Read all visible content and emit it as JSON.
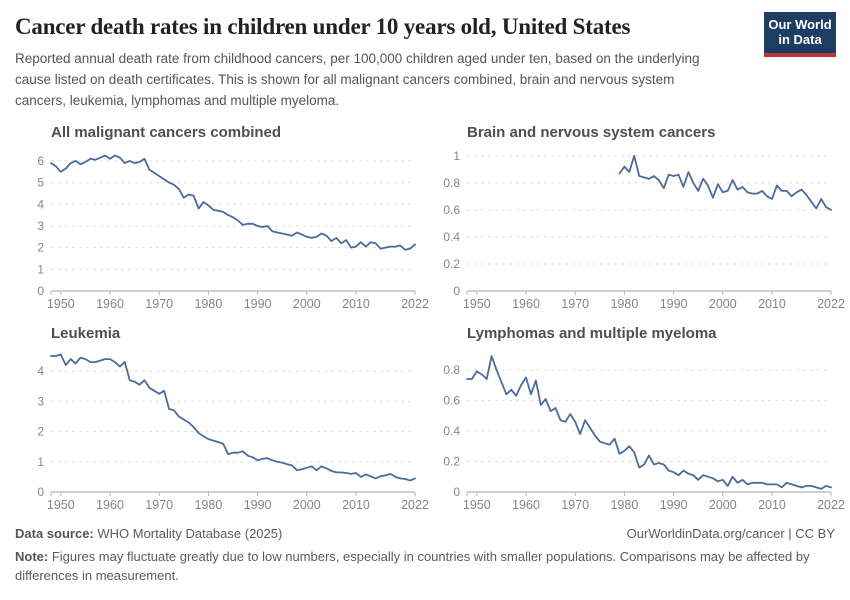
{
  "header": {
    "title": "Cancer death rates in children under 10 years old, United States",
    "subtitle": "Reported annual death rate from childhood cancers, per 100,000 children aged under ten, based on the underlying cause listed on death certificates. This is shown for all malignant cancers combined, brain and nervous system cancers, leukemia, lymphomas and multiple myeloma.",
    "logo": {
      "line1": "Our World",
      "line2": "in Data"
    }
  },
  "colors": {
    "line": "#4c6a9c",
    "grid": "#dddddd",
    "axis": "#b5b5b5",
    "tick_label": "#858585",
    "chart_title": "#4f4f4f",
    "logo_bg": "#1d3d63",
    "logo_accent": "#c0333b"
  },
  "chart_data": [
    {
      "type": "line",
      "title": "All malignant cancers combined",
      "x_axis_range": [
        1948,
        2022
      ],
      "x_start": 1948,
      "x_ticks": [
        1950,
        1960,
        1970,
        1980,
        1990,
        2000,
        2010,
        2022
      ],
      "y_ticks": [
        0,
        1,
        2,
        3,
        4,
        5,
        6
      ],
      "y_render_max": 6.55,
      "values": [
        5.9,
        5.75,
        5.5,
        5.65,
        5.9,
        6.0,
        5.85,
        5.95,
        6.1,
        6.05,
        6.15,
        6.25,
        6.1,
        6.25,
        6.15,
        5.9,
        6.0,
        5.9,
        5.95,
        6.1,
        5.6,
        5.45,
        5.3,
        5.15,
        5.0,
        4.9,
        4.7,
        4.3,
        4.45,
        4.4,
        3.8,
        4.1,
        3.95,
        3.75,
        3.7,
        3.65,
        3.5,
        3.4,
        3.25,
        3.05,
        3.1,
        3.1,
        3.0,
        2.95,
        3.0,
        2.75,
        2.7,
        2.65,
        2.6,
        2.55,
        2.7,
        2.6,
        2.5,
        2.45,
        2.5,
        2.65,
        2.55,
        2.3,
        2.45,
        2.2,
        2.35,
        2.0,
        2.05,
        2.25,
        2.05,
        2.25,
        2.2,
        1.95,
        2.0,
        2.05,
        2.05,
        2.1,
        1.9,
        1.95,
        2.15
      ]
    },
    {
      "type": "line",
      "title": "Brain and nervous system cancers",
      "x_axis_range": [
        1948,
        2022
      ],
      "x_start": 1979,
      "x_ticks": [
        1950,
        1960,
        1970,
        1980,
        1990,
        2000,
        2010,
        2022
      ],
      "y_ticks": [
        0,
        0.2,
        0.4,
        0.6,
        0.8,
        1
      ],
      "y_render_max": 1.05,
      "values": [
        0.87,
        0.92,
        0.88,
        1.0,
        0.85,
        0.84,
        0.83,
        0.85,
        0.82,
        0.76,
        0.86,
        0.85,
        0.86,
        0.77,
        0.88,
        0.8,
        0.74,
        0.83,
        0.78,
        0.69,
        0.79,
        0.73,
        0.74,
        0.82,
        0.75,
        0.77,
        0.73,
        0.72,
        0.72,
        0.74,
        0.7,
        0.68,
        0.78,
        0.74,
        0.74,
        0.7,
        0.73,
        0.75,
        0.71,
        0.66,
        0.61,
        0.68,
        0.62,
        0.6
      ]
    },
    {
      "type": "line",
      "title": "Leukemia",
      "x_axis_range": [
        1948,
        2022
      ],
      "x_start": 1948,
      "x_ticks": [
        1950,
        1960,
        1970,
        1980,
        1990,
        2000,
        2010,
        2022
      ],
      "y_ticks": [
        0,
        1,
        2,
        3,
        4
      ],
      "y_render_max": 4.7,
      "values": [
        4.5,
        4.5,
        4.55,
        4.2,
        4.4,
        4.25,
        4.45,
        4.4,
        4.3,
        4.3,
        4.35,
        4.4,
        4.4,
        4.3,
        4.15,
        4.3,
        3.7,
        3.65,
        3.55,
        3.7,
        3.45,
        3.35,
        3.25,
        3.35,
        2.75,
        2.7,
        2.5,
        2.4,
        2.3,
        2.15,
        1.95,
        1.85,
        1.75,
        1.7,
        1.65,
        1.6,
        1.25,
        1.3,
        1.3,
        1.35,
        1.2,
        1.15,
        1.05,
        1.1,
        1.12,
        1.05,
        1.0,
        0.97,
        0.92,
        0.88,
        0.72,
        0.75,
        0.8,
        0.85,
        0.72,
        0.85,
        0.78,
        0.7,
        0.65,
        0.65,
        0.63,
        0.6,
        0.63,
        0.5,
        0.58,
        0.52,
        0.45,
        0.52,
        0.55,
        0.6,
        0.5,
        0.45,
        0.43,
        0.38,
        0.45
      ]
    },
    {
      "type": "line",
      "title": "Lymphomas and multiple myeloma",
      "x_axis_range": [
        1948,
        2022
      ],
      "x_start": 1948,
      "x_ticks": [
        1950,
        1960,
        1970,
        1980,
        1990,
        2000,
        2010,
        2022
      ],
      "y_ticks": [
        0,
        0.2,
        0.4,
        0.6,
        0.8
      ],
      "y_render_max": 0.93,
      "values": [
        0.74,
        0.74,
        0.79,
        0.77,
        0.74,
        0.89,
        0.8,
        0.72,
        0.64,
        0.67,
        0.63,
        0.7,
        0.75,
        0.64,
        0.73,
        0.57,
        0.61,
        0.53,
        0.55,
        0.47,
        0.46,
        0.51,
        0.46,
        0.38,
        0.47,
        0.42,
        0.37,
        0.33,
        0.32,
        0.31,
        0.35,
        0.25,
        0.27,
        0.3,
        0.26,
        0.16,
        0.18,
        0.24,
        0.18,
        0.19,
        0.18,
        0.14,
        0.13,
        0.11,
        0.14,
        0.12,
        0.11,
        0.08,
        0.11,
        0.1,
        0.09,
        0.07,
        0.08,
        0.04,
        0.1,
        0.06,
        0.08,
        0.05,
        0.06,
        0.06,
        0.06,
        0.05,
        0.05,
        0.05,
        0.03,
        0.06,
        0.05,
        0.04,
        0.03,
        0.04,
        0.04,
        0.03,
        0.02,
        0.04,
        0.03
      ]
    }
  ],
  "footer": {
    "source_label": "Data source:",
    "source_value": " WHO Mortality Database (2025)",
    "link": "OurWorldinData.org/cancer | CC BY",
    "note_label": "Note:",
    "note_text": " Figures may fluctuate greatly due to low numbers, especially in countries with smaller populations. Comparisons may be affected by differences in measurement."
  }
}
